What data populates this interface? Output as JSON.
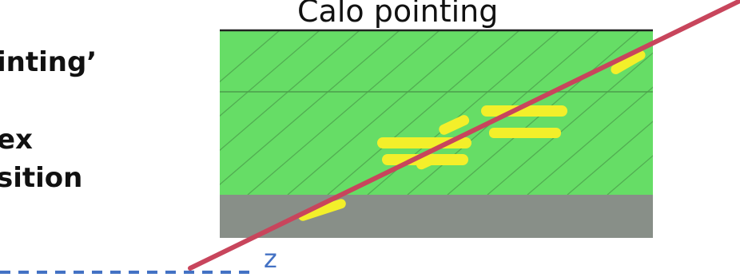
{
  "title": "Calo pointing",
  "left_text": {
    "line1": "inting’",
    "line2": "ex",
    "line3": "sition"
  },
  "axis": {
    "label": "z"
  },
  "colors": {
    "ecal_layer": "#66dd66",
    "hcal_layer": "#888f88",
    "shower": "#f3ef2a",
    "track_line": "#c8455c",
    "axis_dashes": "#4472c4"
  }
}
